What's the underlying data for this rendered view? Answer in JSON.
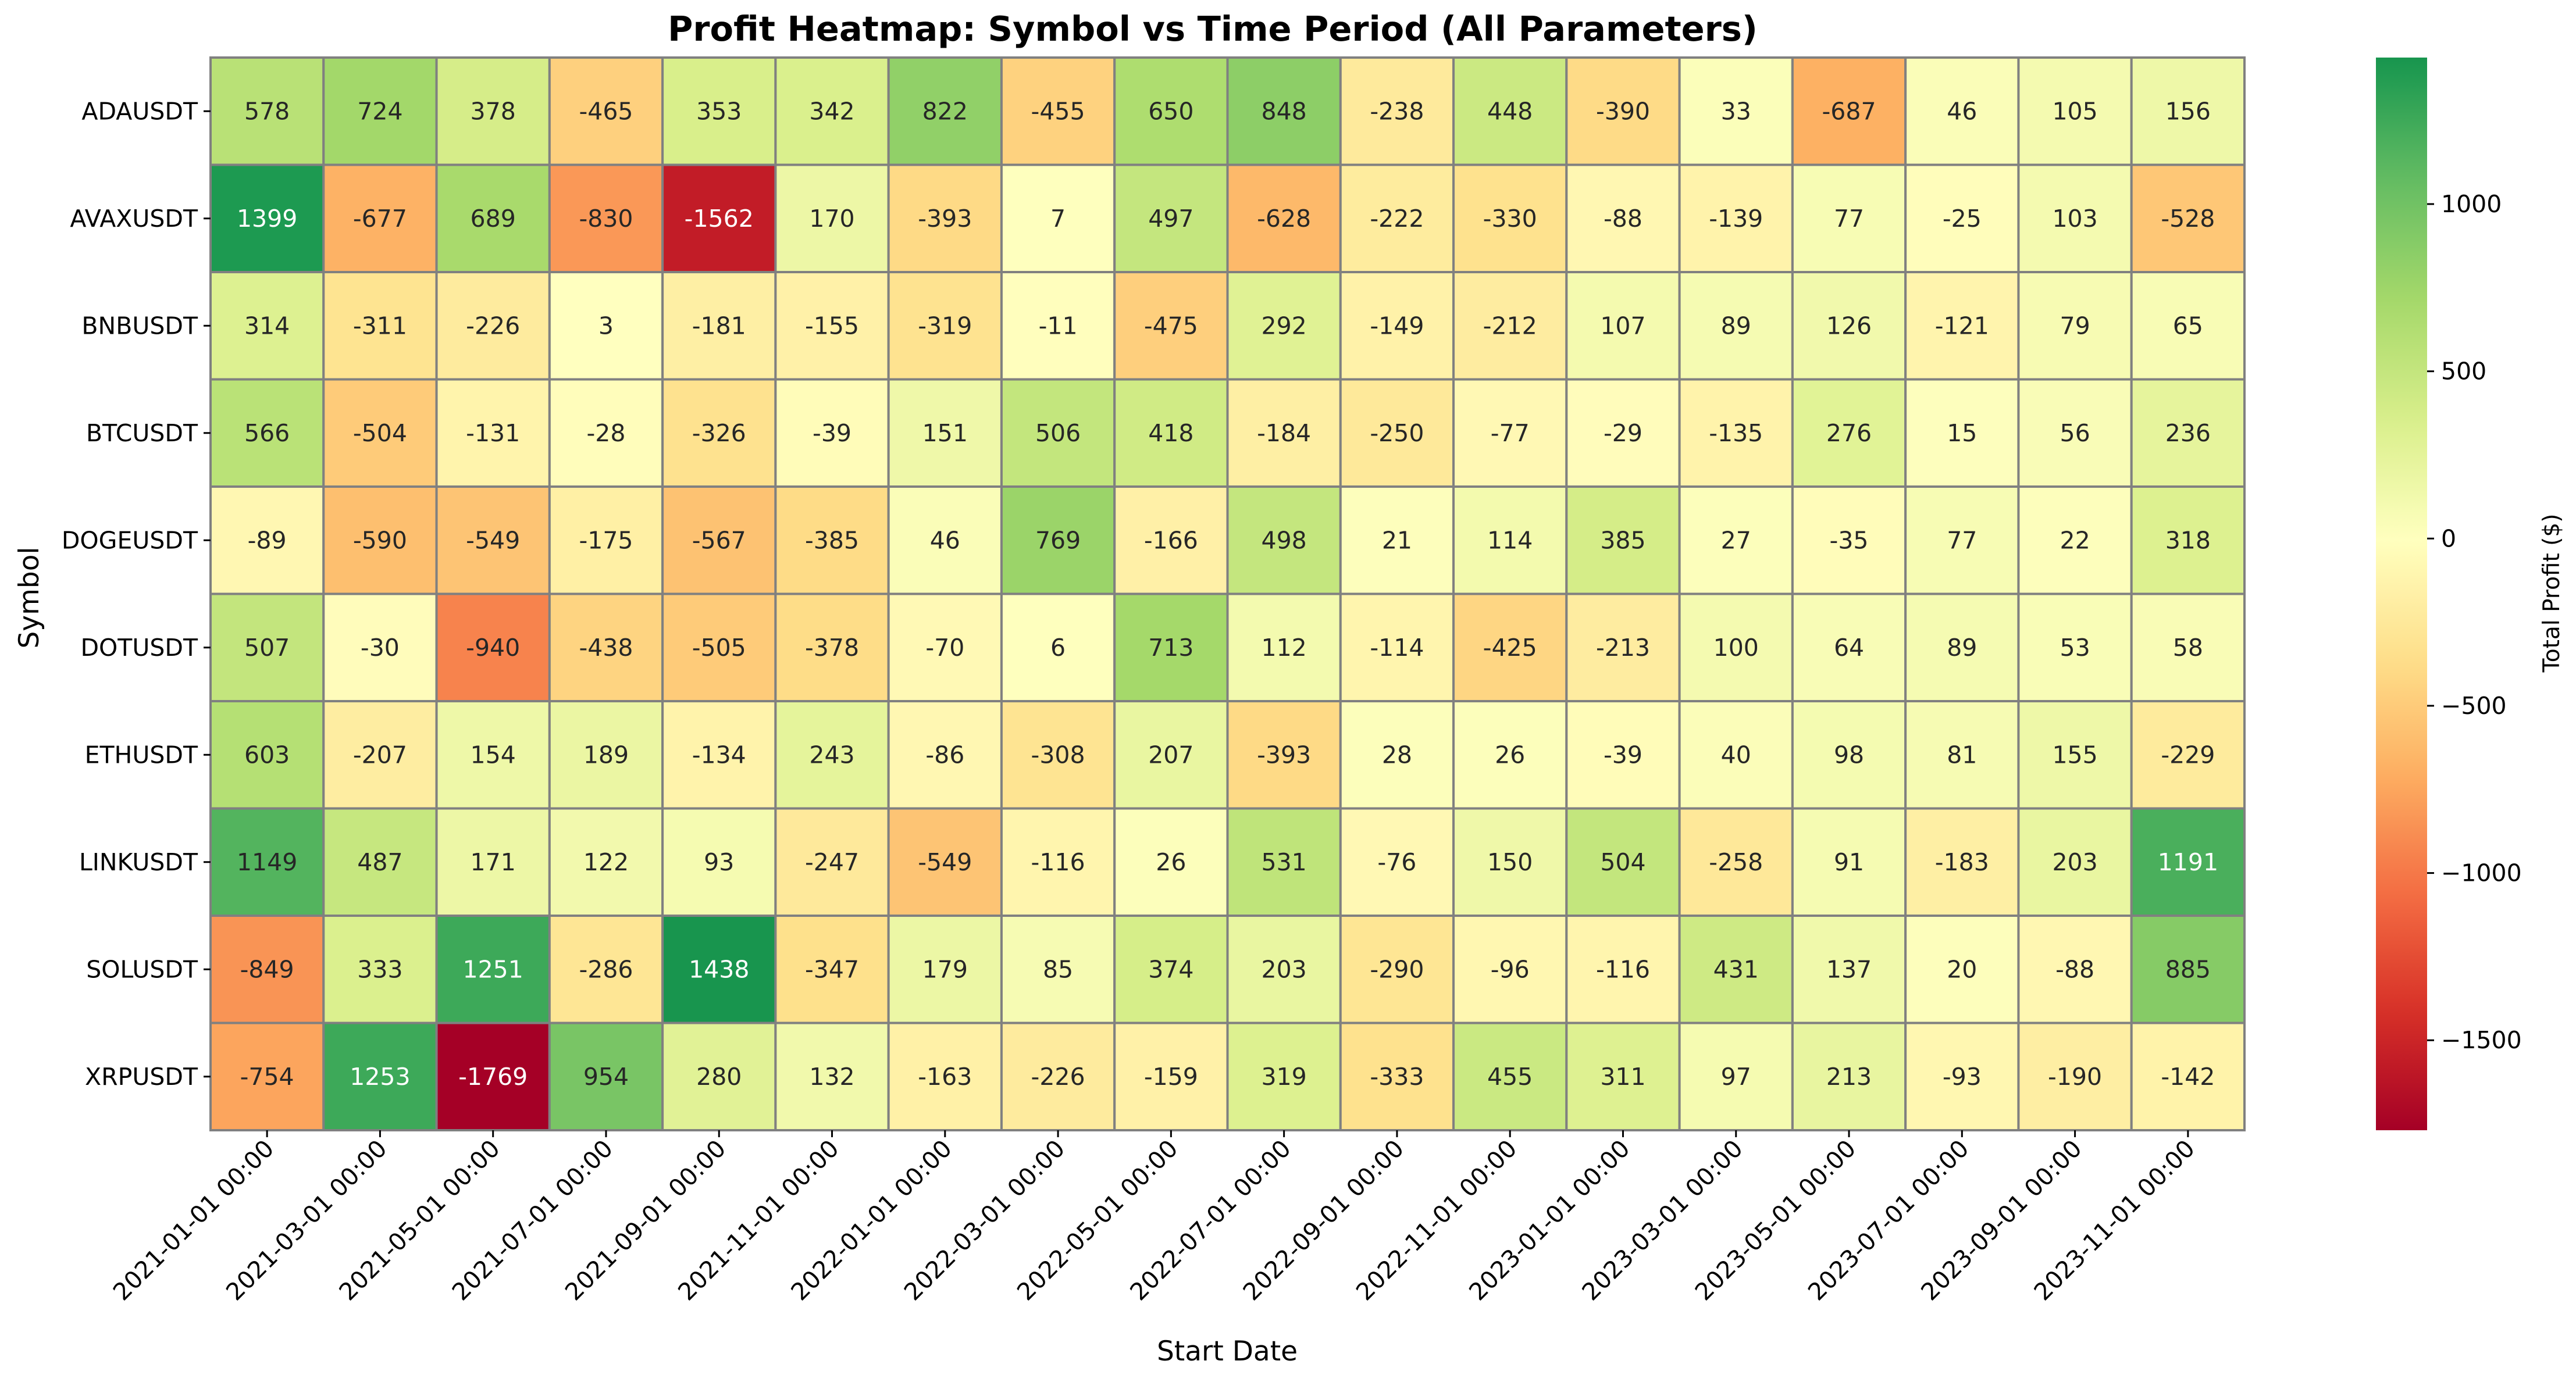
{
  "chart_data": {
    "type": "heatmap",
    "title": "Profit Heatmap: Symbol vs Time Period (All Parameters)",
    "xlabel": "Start Date",
    "ylabel": "Symbol",
    "colorbar_label": "Total Profit ($)",
    "colormap": "RdYlGn",
    "vmin": -1769,
    "vmax": 1438,
    "colorbar_ticks": [
      1000,
      500,
      0,
      -500,
      -1000,
      -1500
    ],
    "colorbar_tick_labels": [
      "1000",
      "500",
      "0",
      "−500",
      "−1000",
      "−1500"
    ],
    "x_categories": [
      "2021-01-01 00:00",
      "2021-03-01 00:00",
      "2021-05-01 00:00",
      "2021-07-01 00:00",
      "2021-09-01 00:00",
      "2021-11-01 00:00",
      "2022-01-01 00:00",
      "2022-03-01 00:00",
      "2022-05-01 00:00",
      "2022-07-01 00:00",
      "2022-09-01 00:00",
      "2022-11-01 00:00",
      "2023-01-01 00:00",
      "2023-03-01 00:00",
      "2023-05-01 00:00",
      "2023-07-01 00:00",
      "2023-09-01 00:00",
      "2023-11-01 00:00"
    ],
    "y_categories": [
      "ADAUSDT",
      "AVAXUSDT",
      "BNBUSDT",
      "BTCUSDT",
      "DOGEUSDT",
      "DOTUSDT",
      "ETHUSDT",
      "LINKUSDT",
      "SOLUSDT",
      "XRPUSDT"
    ],
    "values": [
      [
        578,
        724,
        378,
        -465,
        353,
        342,
        822,
        -455,
        650,
        848,
        -238,
        448,
        -390,
        33,
        -687,
        46,
        105,
        156
      ],
      [
        1399,
        -677,
        689,
        -830,
        -1562,
        170,
        -393,
        7,
        497,
        -628,
        -222,
        -330,
        -88,
        -139,
        77,
        -25,
        103,
        -528
      ],
      [
        314,
        -311,
        -226,
        3,
        -181,
        -155,
        -319,
        -11,
        -475,
        292,
        -149,
        -212,
        107,
        89,
        126,
        -121,
        79,
        65
      ],
      [
        566,
        -504,
        -131,
        -28,
        -326,
        -39,
        151,
        506,
        418,
        -184,
        -250,
        -77,
        -29,
        -135,
        276,
        15,
        56,
        236
      ],
      [
        -89,
        -590,
        -549,
        -175,
        -567,
        -385,
        46,
        769,
        -166,
        498,
        21,
        114,
        385,
        27,
        -35,
        77,
        22,
        318
      ],
      [
        507,
        -30,
        -940,
        -438,
        -505,
        -378,
        -70,
        6,
        713,
        112,
        -114,
        -425,
        -213,
        100,
        64,
        89,
        53,
        58
      ],
      [
        603,
        -207,
        154,
        189,
        -134,
        243,
        -86,
        -308,
        207,
        -393,
        28,
        26,
        -39,
        40,
        98,
        81,
        155,
        -229
      ],
      [
        1149,
        487,
        171,
        122,
        93,
        -247,
        -549,
        -116,
        26,
        531,
        -76,
        150,
        504,
        -258,
        91,
        -183,
        203,
        1191
      ],
      [
        -849,
        333,
        1251,
        -286,
        1438,
        -347,
        179,
        85,
        374,
        203,
        -290,
        -96,
        -116,
        431,
        137,
        20,
        -88,
        885
      ],
      [
        -754,
        1253,
        -1769,
        954,
        280,
        132,
        -163,
        -226,
        -159,
        319,
        -333,
        455,
        311,
        97,
        213,
        -93,
        -190,
        -142
      ]
    ],
    "grid_line_color": "#808080"
  }
}
